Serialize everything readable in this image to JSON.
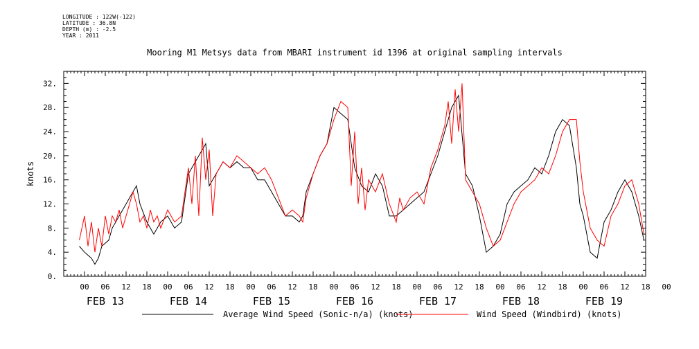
{
  "metadata": [
    "LONGITUDE : 122W(-122)",
    "LATITUDE : 36.8N",
    "DEPTH (m) : -2.5",
    "YEAR : 2011"
  ],
  "chart_data": {
    "type": "line",
    "title": "Mooring M1 Metsys data from MBARI instrument id 1396 at original sampling intervals",
    "ylabel": "knots",
    "xlabel": "",
    "ylim": [
      0,
      34
    ],
    "y_ticks": [
      "0.",
      "4.",
      "8.",
      "12.",
      "16.",
      "20.",
      "24.",
      "28.",
      "32."
    ],
    "x_range_hours": [
      -6,
      162
    ],
    "x_hour_ticks": [
      "00",
      "06",
      "12",
      "18",
      "00",
      "06",
      "12",
      "18",
      "00",
      "06",
      "12",
      "18",
      "00",
      "06",
      "12",
      "18",
      "00",
      "06",
      "12",
      "18",
      "00",
      "06",
      "12",
      "18",
      "00",
      "06",
      "12",
      "18",
      "00"
    ],
    "x_day_labels": [
      "FEB 13",
      "FEB 14",
      "FEB 15",
      "FEB 16",
      "FEB 17",
      "FEB 18",
      "FEB 19"
    ],
    "grid": false,
    "legend_position": "bottom",
    "series": [
      {
        "name": "Average Wind Speed (Sonic-n/a) (knots)",
        "color": "#000000",
        "x_unit": "hours from FEB 13 00",
        "x": [
          -1.5,
          0,
          2,
          3,
          4,
          5,
          7,
          8,
          9,
          11,
          13,
          15,
          16,
          18,
          20,
          22,
          24,
          26,
          28,
          30,
          33,
          35,
          36,
          38,
          40,
          42,
          44,
          46,
          48,
          50,
          52,
          54,
          56,
          58,
          60,
          62,
          63,
          64,
          66,
          68,
          70,
          72,
          74,
          76,
          78,
          80,
          82,
          84,
          86,
          88,
          90,
          92,
          94,
          96,
          98,
          100,
          102,
          104,
          106,
          108,
          110,
          112,
          114,
          116,
          118,
          120,
          122,
          124,
          126,
          128,
          130,
          132,
          134,
          136,
          138,
          140,
          142,
          143,
          144,
          146,
          148,
          150,
          152,
          154,
          156,
          158,
          160,
          161.5
        ],
        "y": [
          5,
          4,
          3,
          2,
          3,
          5,
          6,
          8,
          9,
          11,
          13,
          15,
          12,
          9,
          7,
          9,
          10,
          8,
          9,
          17,
          20,
          22,
          15,
          17,
          19,
          18,
          19,
          18,
          18,
          16,
          16,
          14,
          12,
          10,
          10,
          9,
          10,
          14,
          17,
          20,
          22,
          28,
          27,
          26,
          18,
          15,
          14,
          17,
          15,
          10,
          10,
          11,
          12,
          13,
          14,
          17,
          20,
          24,
          28,
          30,
          17,
          15,
          10,
          4,
          5,
          7,
          12,
          14,
          15,
          16,
          18,
          17,
          20,
          24,
          26,
          25,
          18,
          12,
          10,
          4,
          3,
          9,
          11,
          14,
          16,
          14,
          10,
          6
        ]
      },
      {
        "name": "Wind Speed (Windbird) (knots)",
        "color": "#ff0000",
        "x_unit": "hours from FEB 13 00",
        "x": [
          -1.5,
          0,
          1,
          2,
          3,
          4,
          5,
          6,
          7,
          8,
          9,
          10,
          11,
          12,
          13,
          14,
          15,
          16,
          17,
          18,
          19,
          20,
          21,
          22,
          24,
          26,
          28,
          30,
          31,
          32,
          33,
          34,
          35,
          36,
          37,
          38,
          40,
          42,
          44,
          46,
          48,
          50,
          52,
          54,
          56,
          58,
          60,
          62,
          63,
          64,
          66,
          68,
          70,
          72,
          74,
          76,
          77,
          78,
          79,
          80,
          81,
          82,
          84,
          86,
          88,
          90,
          91,
          92,
          94,
          96,
          98,
          100,
          102,
          104,
          105,
          106,
          107,
          108,
          109,
          110,
          112,
          114,
          116,
          118,
          120,
          122,
          124,
          126,
          128,
          130,
          132,
          134,
          136,
          138,
          140,
          142,
          143,
          144,
          146,
          148,
          150,
          152,
          154,
          156,
          158,
          160,
          161.5
        ],
        "y": [
          6,
          10,
          5,
          9,
          4,
          8,
          5,
          10,
          7,
          10,
          9,
          11,
          8,
          10,
          12,
          14,
          12,
          9,
          10,
          8,
          11,
          9,
          10,
          8,
          11,
          9,
          10,
          18,
          12,
          20,
          10,
          23,
          16,
          21,
          10,
          17,
          19,
          18,
          20,
          19,
          18,
          17,
          18,
          16,
          13,
          10,
          11,
          10,
          9,
          13,
          17,
          20,
          22,
          26,
          29,
          28,
          15,
          24,
          12,
          18,
          11,
          16,
          14,
          17,
          12,
          9,
          13,
          11,
          13,
          14,
          12,
          18,
          21,
          25,
          29,
          22,
          31,
          24,
          32,
          16,
          14,
          12,
          8,
          5,
          6,
          9,
          12,
          14,
          15,
          16,
          18,
          17,
          20,
          24,
          26,
          26,
          19,
          14,
          8,
          6,
          5,
          10,
          12,
          15,
          16,
          12,
          7
        ]
      }
    ]
  }
}
